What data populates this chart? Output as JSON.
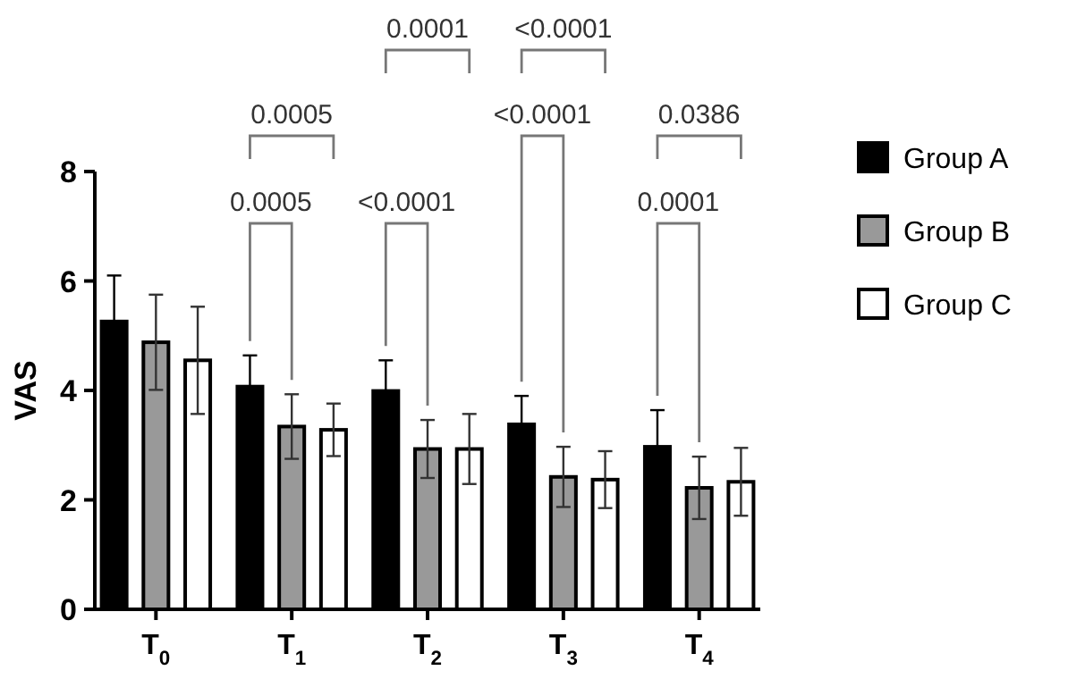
{
  "chart_data": {
    "type": "bar",
    "ylabel": "VAS",
    "categories": [
      "T$_{0}$",
      "T$_{1}$",
      "T$_{2}$",
      "T$_{3}$",
      "T$_{4}$"
    ],
    "series": [
      {
        "name": "Group A",
        "color": "#000000",
        "values": [
          5.26,
          4.07,
          3.99,
          3.38,
          2.97
        ],
        "errors": [
          0.84,
          0.57,
          0.56,
          0.52,
          0.67
        ]
      },
      {
        "name": "Group B",
        "color": "#999999",
        "values": [
          4.88,
          3.34,
          2.93,
          2.42,
          2.22
        ],
        "errors": [
          0.87,
          0.59,
          0.53,
          0.55,
          0.57
        ]
      },
      {
        "name": "Group C",
        "color": "#ffffff",
        "values": [
          4.55,
          3.28,
          2.93,
          2.37,
          2.33
        ],
        "errors": [
          0.98,
          0.48,
          0.64,
          0.52,
          0.62
        ]
      }
    ],
    "ylim": [
      0,
      8
    ],
    "yticks": [
      0,
      2,
      4,
      6,
      8
    ],
    "grid": false,
    "legend": "right",
    "annotations": [
      "0.0005",
      "0.0005",
      "<0.0001",
      "0.0001",
      "<0.0001",
      "<0.0001",
      "0.0001",
      "0.0386"
    ]
  }
}
